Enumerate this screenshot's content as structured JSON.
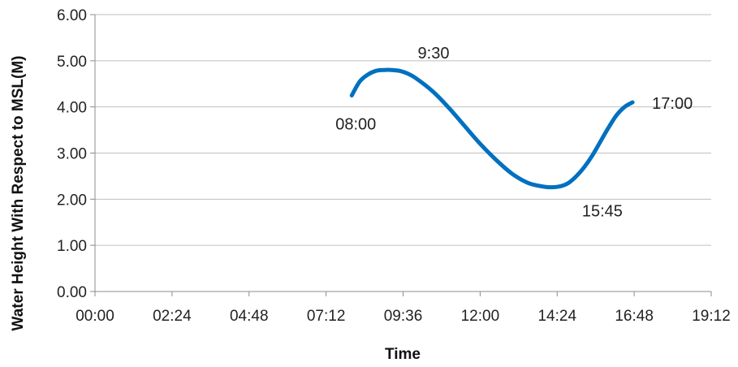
{
  "chart_data": {
    "type": "line",
    "title": "",
    "xlabel": "Time",
    "ylabel": "Water Height With Respect to MSL(M)",
    "x_unit": "hours",
    "xlim": [
      0,
      19.2
    ],
    "ylim": [
      0,
      6
    ],
    "x_tick_values": [
      0,
      2.4,
      4.8,
      7.2,
      9.6,
      12,
      14.4,
      16.8,
      19.2
    ],
    "x_ticks": [
      "00:00",
      "02:24",
      "04:48",
      "07:12",
      "09:36",
      "12:00",
      "14:24",
      "16:48",
      "19:12"
    ],
    "y_tick_values": [
      0,
      1,
      2,
      3,
      4,
      5,
      6
    ],
    "y_ticks": [
      "0.00",
      "1.00",
      "2.00",
      "3.00",
      "4.00",
      "5.00",
      "6.00"
    ],
    "grid": "horizontal",
    "legend": "none",
    "series": [
      {
        "color": "#0070C0",
        "x": [
          8.0,
          8.25,
          8.5,
          8.75,
          9.0,
          9.25,
          9.5,
          9.75,
          10.0,
          10.5,
          11.0,
          11.5,
          12.0,
          12.5,
          13.0,
          13.5,
          14.0,
          14.25,
          14.5,
          14.75,
          15.0,
          15.25,
          15.5,
          15.75,
          16.0,
          16.25,
          16.5,
          16.75
        ],
        "y": [
          4.25,
          4.55,
          4.7,
          4.78,
          4.8,
          4.8,
          4.78,
          4.72,
          4.62,
          4.35,
          4.0,
          3.6,
          3.2,
          2.85,
          2.55,
          2.35,
          2.27,
          2.26,
          2.28,
          2.35,
          2.5,
          2.7,
          2.95,
          3.25,
          3.55,
          3.82,
          4.0,
          4.1
        ]
      }
    ],
    "annotations": [
      {
        "text": "08:00",
        "x": 8.0,
        "y": 4.25,
        "pos": "below"
      },
      {
        "text": "9:30",
        "x": 9.5,
        "y": 4.8,
        "pos": "above-right"
      },
      {
        "text": "15:45",
        "x": 15.3,
        "y": 2.26,
        "pos": "below-right"
      },
      {
        "text": "17:00",
        "x": 16.75,
        "y": 4.1,
        "pos": "right"
      }
    ]
  }
}
